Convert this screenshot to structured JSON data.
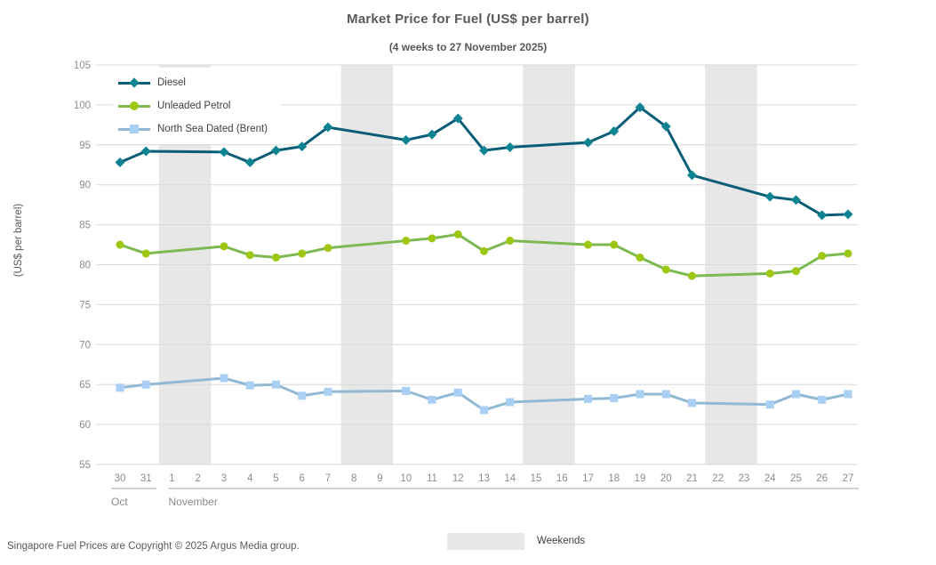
{
  "title": "Market Price for Fuel (US$ per barrel)",
  "subtitle": "(4 weeks to 27 November 2025)",
  "footer": "Singapore Fuel Prices are Copyright © 2025 Argus Media group.",
  "weekends_label": "Weekends",
  "colors": {
    "title_text": "#595959",
    "axis_text": "#8c8c8c",
    "legend_text": "#404040",
    "gridline": "#d9d9d9",
    "weekend_band": "#e7e7e7",
    "month_divider": "#a6a6a6"
  },
  "chart_data": {
    "type": "line",
    "title": "Market Price for Fuel (US$ per barrel)",
    "subtitle": "(4 weeks to 27 November 2025)",
    "xlabel": "",
    "ylabel": "(US$ per barrel)",
    "ylim": [
      55,
      105
    ],
    "ytick_step": 5,
    "grid": "horizontal",
    "legend_position": "top-left-inside",
    "x_categories": [
      "30",
      "31",
      "1",
      "2",
      "3",
      "4",
      "5",
      "6",
      "7",
      "8",
      "9",
      "10",
      "11",
      "12",
      "13",
      "14",
      "15",
      "16",
      "17",
      "18",
      "19",
      "20",
      "21",
      "22",
      "23",
      "24",
      "25",
      "26",
      "27"
    ],
    "month_groups": [
      {
        "label": "Oct",
        "from": 0,
        "to": 1
      },
      {
        "label": "November",
        "from": 2,
        "to": 28
      }
    ],
    "weekend_bands": [
      [
        2,
        3
      ],
      [
        9,
        10
      ],
      [
        16,
        17
      ],
      [
        23,
        24
      ]
    ],
    "weekend_bands_note": "gray shaded columns mark weekends (Nov 1-2, 8-9, 15-16, 22-23); no data points on weekends",
    "data_x_indices": [
      0,
      1,
      4,
      5,
      6,
      7,
      8,
      11,
      12,
      13,
      14,
      15,
      18,
      19,
      20,
      21,
      22,
      25,
      26,
      27,
      28
    ],
    "series": [
      {
        "name": "Diesel",
        "marker": "diamond",
        "line_color": "#0a5d78",
        "marker_color": "#0e8492",
        "values": [
          92.8,
          94.2,
          94.1,
          92.8,
          94.3,
          94.8,
          97.2,
          95.6,
          96.3,
          98.3,
          94.3,
          94.7,
          95.3,
          96.7,
          99.7,
          97.3,
          91.2,
          88.5,
          88.1,
          86.2,
          86.3
        ]
      },
      {
        "name": "Unleaded Petrol",
        "marker": "circle",
        "line_color": "#7cba51",
        "marker_color": "#9ec713",
        "values": [
          82.5,
          81.4,
          82.3,
          81.2,
          80.9,
          81.4,
          82.1,
          83.0,
          83.3,
          83.8,
          81.7,
          83.0,
          82.5,
          82.5,
          80.9,
          79.4,
          78.6,
          78.9,
          79.2,
          81.1,
          81.4
        ]
      },
      {
        "name": "North Sea Dated (Brent)",
        "marker": "square",
        "line_color": "#91b9d4",
        "marker_color": "#a9cff4",
        "values": [
          64.6,
          65.0,
          65.8,
          64.9,
          65.0,
          63.6,
          64.1,
          64.2,
          63.1,
          64.0,
          61.8,
          62.8,
          63.2,
          63.3,
          63.8,
          63.8,
          62.7,
          62.5,
          63.8,
          63.1,
          63.8
        ]
      }
    ]
  }
}
